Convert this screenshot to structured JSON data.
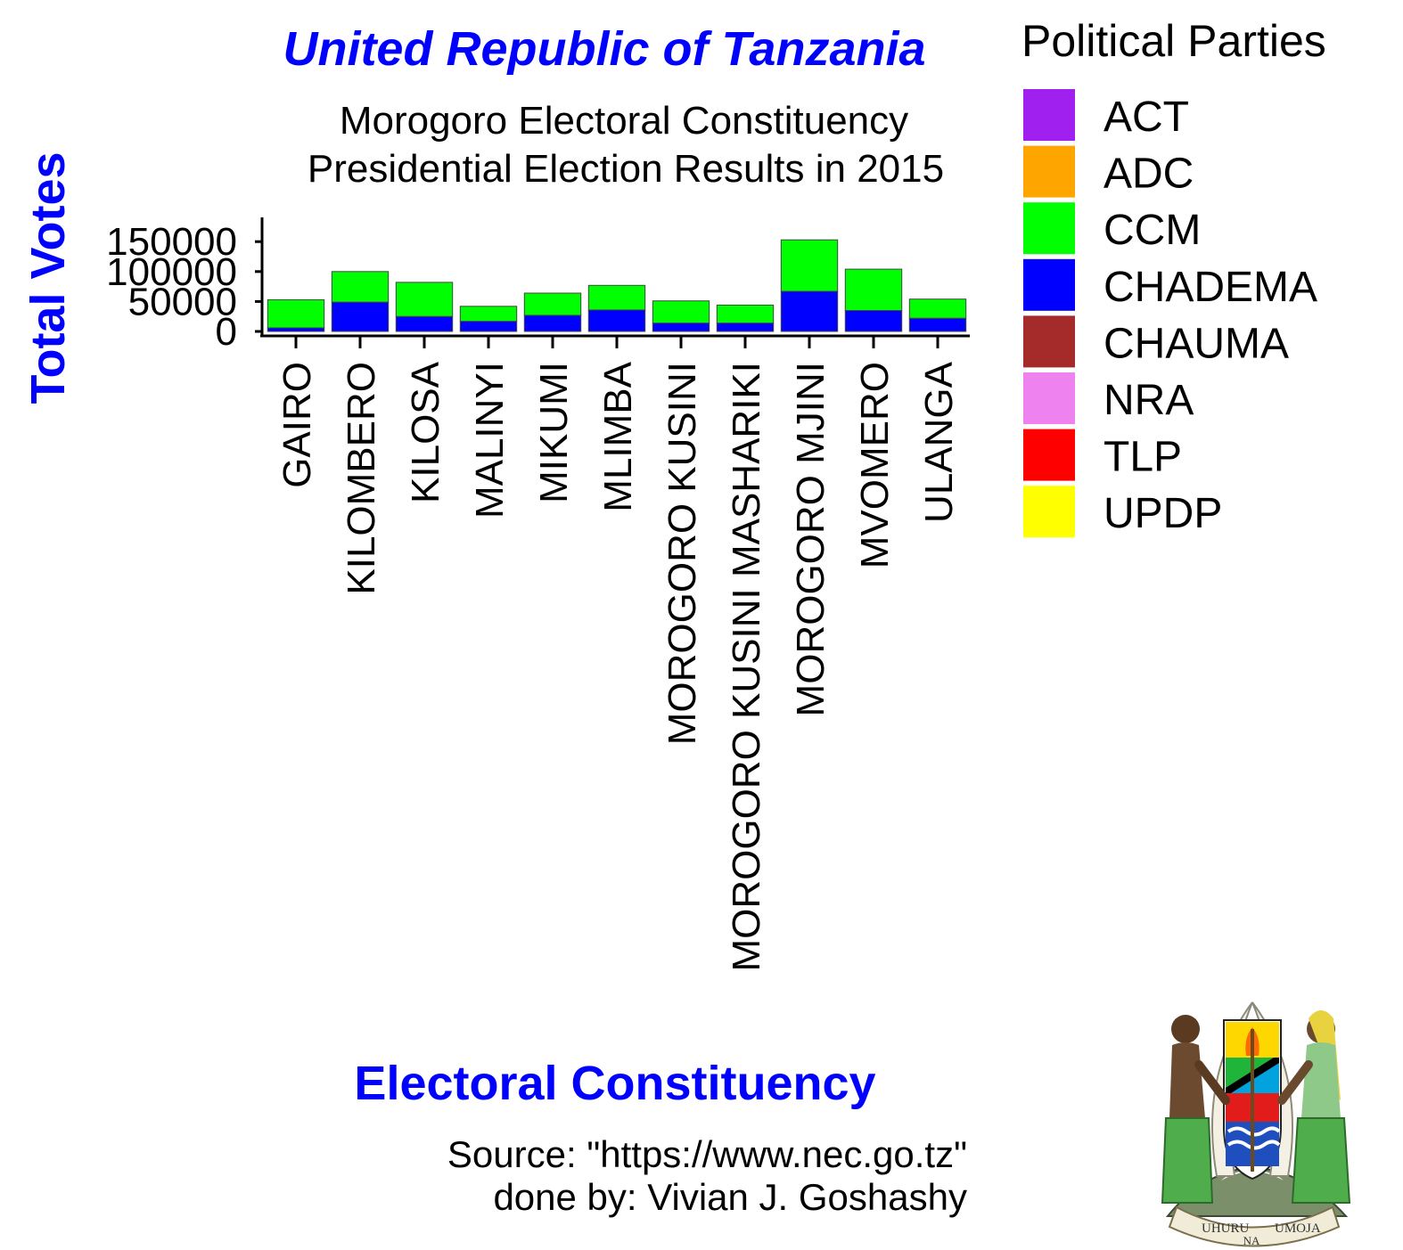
{
  "colors": {
    "title": "#0000ff",
    "axis_title": "#0000ff",
    "ACT": "#a020f0",
    "ADC": "#ffa500",
    "CCM": "#00ff00",
    "CHADEMA": "#0000ff",
    "CHAUMA": "#a52a2a",
    "NRA": "#ee82ee",
    "TLP": "#ff0000",
    "UPDP": "#ffff00"
  },
  "caption": {
    "source": "Source: \"https://www.nec.go.tz\"",
    "author": "done by: Vivian J. Goshashy"
  },
  "emblem": {
    "motto_left": "UHURU",
    "motto_center": "NA",
    "motto_right": "UMOJA"
  },
  "chart_data": {
    "type": "bar",
    "stacked": true,
    "title": "United Republic of Tanzania",
    "subtitle_lines": [
      "Morogoro Electoral Constituency",
      "Presidential Election Results in 2015"
    ],
    "xlabel": "Electoral Constituency",
    "ylabel": "Total Votes",
    "ylim": [
      0,
      160000
    ],
    "yticks": [
      0,
      50000,
      100000,
      150000
    ],
    "grid": false,
    "legend_title": "Political Parties",
    "legend_position": "right",
    "legend_entries": [
      "ACT",
      "ADC",
      "CCM",
      "CHADEMA",
      "CHAUMA",
      "NRA",
      "TLP",
      "UPDP"
    ],
    "categories": [
      "GAIRO",
      "KILOMBERO",
      "KILOSA",
      "MALINYI",
      "MIKUMI",
      "MLIMBA",
      "MOROGORO KUSINI",
      "MOROGORO KUSINI MASHARIKI",
      "MOROGORO MJINI",
      "MVOMERO",
      "ULANGA"
    ],
    "series": [
      {
        "name": "CHADEMA",
        "values": [
          6000,
          49000,
          25000,
          17000,
          27000,
          36000,
          14000,
          14000,
          67000,
          35000,
          22000
        ]
      },
      {
        "name": "CCM",
        "values": [
          47000,
          51000,
          57000,
          25000,
          37000,
          41000,
          37000,
          30000,
          86000,
          69000,
          32000
        ]
      }
    ]
  }
}
